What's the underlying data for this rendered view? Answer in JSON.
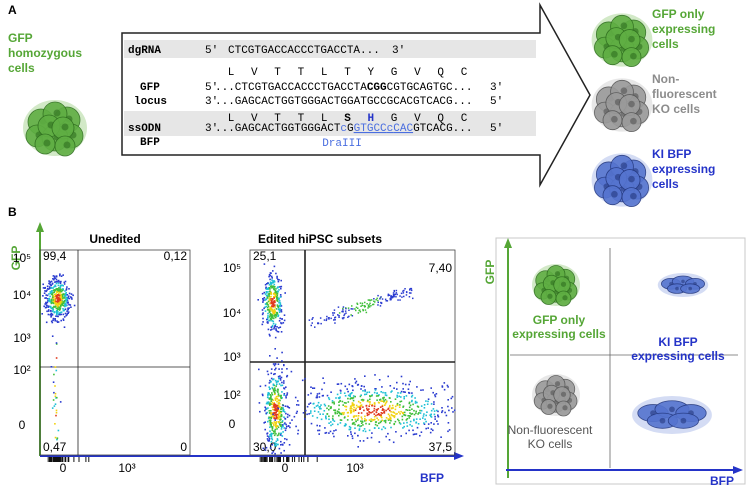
{
  "panel_a": {
    "label": "A",
    "source_cells": [
      "GFP",
      "homozygous",
      "cells"
    ],
    "dgrna": {
      "name": "dgRNA",
      "start": "5′",
      "sequence": "CTCGTGACCACCCTGACCTA...",
      "end": "3′"
    },
    "gfp_protein": [
      "L",
      "V",
      "T",
      "T",
      "L",
      "T",
      "Y",
      "G",
      "V",
      "Q",
      "C"
    ],
    "gfp_locus": {
      "name": [
        "GFP",
        "locus"
      ],
      "top": {
        "start": "5′",
        "segments": [
          {
            "text": "...CTCGTGACCACCCTGACCTA"
          },
          {
            "text": "CGG",
            "bold": true
          },
          {
            "text": "CGTGCAGTGC..."
          }
        ],
        "end": "3′"
      },
      "bottom": {
        "start": "3′",
        "segments": [
          {
            "text": "...GAGCACTGGTGGGACTGGATGCCGCACGTCACG..."
          }
        ],
        "end": "5′"
      }
    },
    "bfp_protein": [
      {
        "text": "L"
      },
      {
        "text": "V"
      },
      {
        "text": "T"
      },
      {
        "text": "T"
      },
      {
        "text": "L"
      },
      {
        "text": "S",
        "bold": true
      },
      {
        "text": "H",
        "bold": true,
        "color": "#2433c8"
      },
      {
        "text": "G"
      },
      {
        "text": "V"
      },
      {
        "text": "Q"
      },
      {
        "text": "C"
      }
    ],
    "ssodn": {
      "name": [
        "ssODN",
        "BFP"
      ],
      "start": "3′",
      "segments": [
        {
          "text": "...GAGCACTGGTGGGACT"
        },
        {
          "text": "c",
          "color": "#4a6ee0"
        },
        {
          "text": "G"
        },
        {
          "text": "GTGCC",
          "color": "#4a6ee0",
          "underline": true
        },
        {
          "text": "c",
          "color": "#4a6ee0",
          "underline": true
        },
        {
          "text": "CAC",
          "color": "#4a6ee0",
          "underline": true
        },
        {
          "text": "GTCACG..."
        }
      ],
      "end": "5′",
      "site": "DraIII"
    },
    "outcomes": [
      {
        "lines": [
          "GFP only",
          "expressing",
          "cells"
        ],
        "color": "#55a636"
      },
      {
        "lines": [
          "Non-",
          "fluorescent",
          "KO cells"
        ],
        "color": "#8c8c8c"
      },
      {
        "lines": [
          "KI BFP",
          "expressing",
          "cells"
        ],
        "color": "#2433c8"
      }
    ]
  },
  "panel_b": {
    "label": "B",
    "y_label": "GFP",
    "x_label": "BFP",
    "plots": [
      {
        "title": "Unedited",
        "quadrants": [
          "99,4",
          "0,12",
          "0,47",
          "0"
        ],
        "yticks": [
          "10⁵",
          "10⁴",
          "10³",
          "10²",
          "0"
        ],
        "xticks": [
          "0",
          "10³"
        ]
      },
      {
        "title": "Edited hiPSC subsets",
        "quadrants": [
          "25,1",
          "7,40",
          "30,0",
          "37,5"
        ],
        "yticks": [
          "10⁵",
          "10⁴",
          "10³",
          "10²",
          "0"
        ],
        "xticks": [
          "0",
          "10³"
        ]
      }
    ],
    "schematic": {
      "y_label": "GFP",
      "x_label": "BFP",
      "gfp_only": [
        "GFP only",
        "expressing cells"
      ],
      "ki_bfp": [
        "KI BFP",
        "expressing cells"
      ],
      "ko": [
        "Non-fluorescent",
        "KO cells"
      ]
    }
  }
}
